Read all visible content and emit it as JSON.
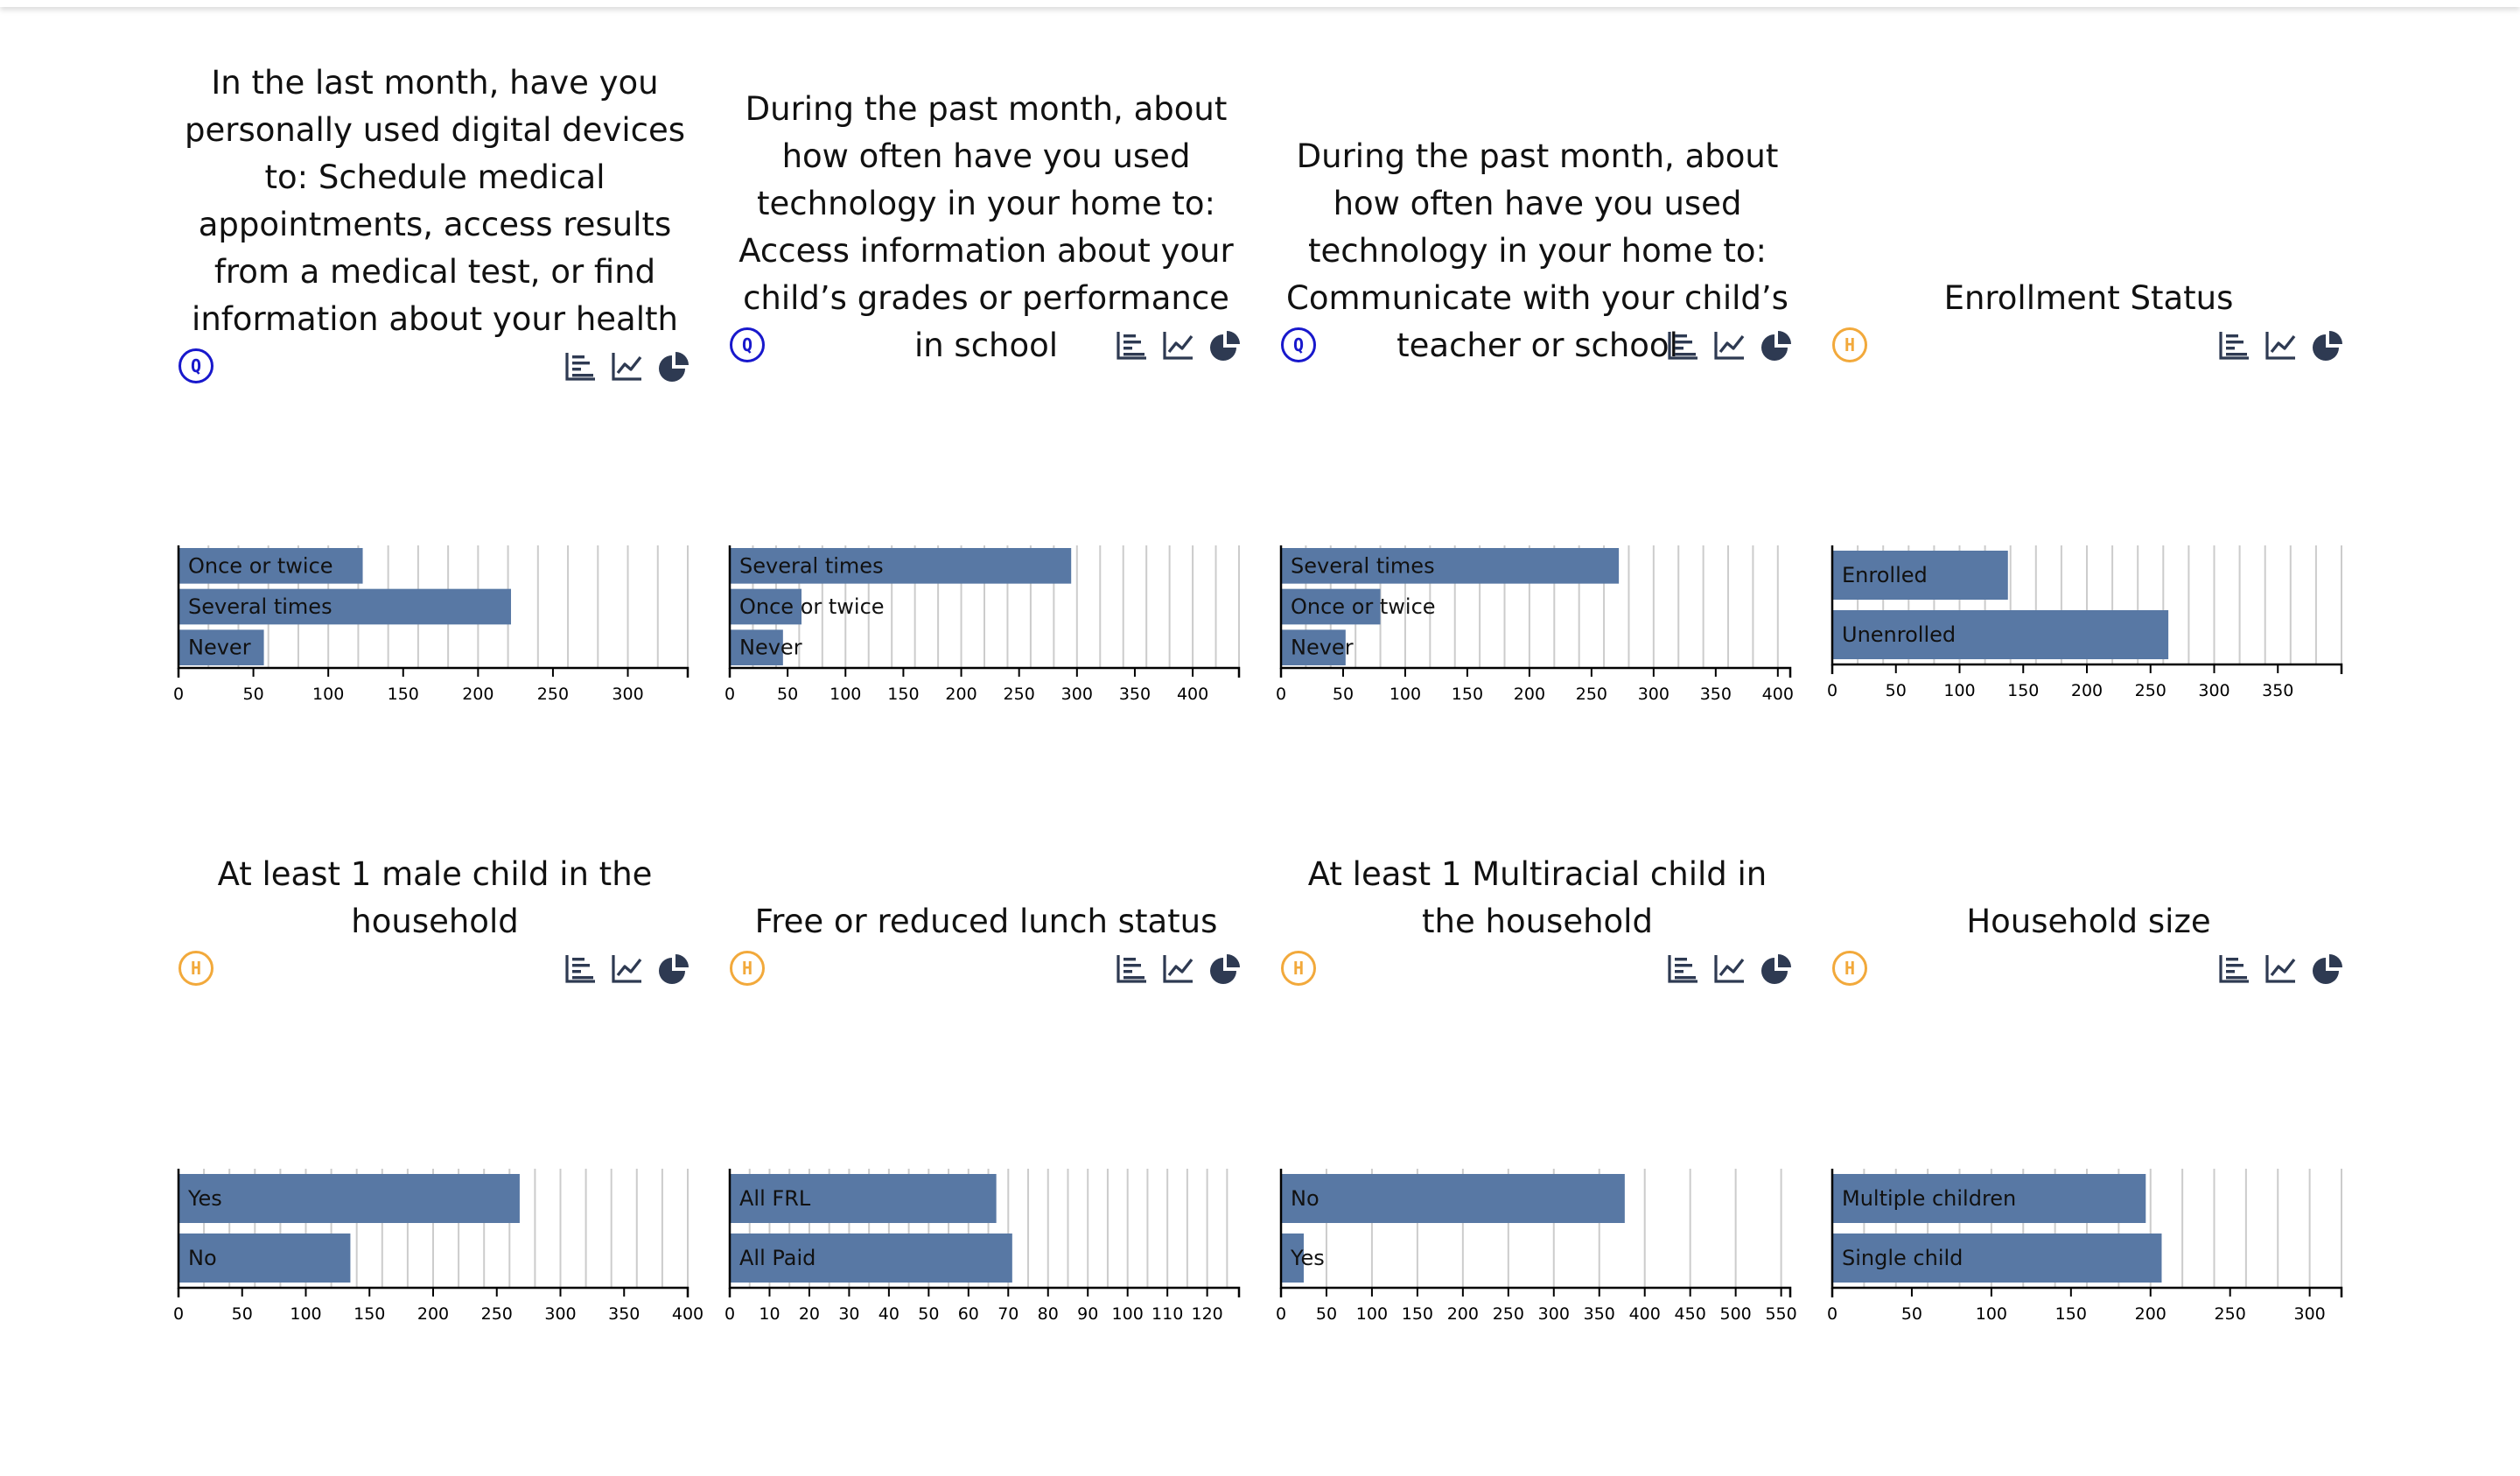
{
  "chart_data": [
    {
      "type": "bar",
      "title": "In the last month, have you personally used digital devices to: Schedule medical appointments, access results from a medical test, or find information about your health",
      "badge": "Q",
      "categories": [
        "Once or twice",
        "Several times",
        "Never"
      ],
      "values": [
        123,
        222,
        57
      ],
      "ticks": [
        0,
        50,
        100,
        150,
        200,
        250,
        300
      ],
      "xlim": [
        0,
        340
      ],
      "gridlines": [
        0,
        20,
        40,
        60,
        80,
        100,
        120,
        140,
        160,
        180,
        200,
        220,
        240,
        260,
        280,
        300,
        320,
        340
      ],
      "bar_color": "#5878a4"
    },
    {
      "type": "bar",
      "title": "During the past month, about how often have you used technology in your home to: Access information about your child’s grades or performance in school",
      "badge": "Q",
      "categories": [
        "Several times",
        "Once or twice",
        "Never"
      ],
      "values": [
        295,
        62,
        46
      ],
      "ticks": [
        0,
        50,
        100,
        150,
        200,
        250,
        300,
        350,
        400
      ],
      "xlim": [
        0,
        440
      ],
      "gridlines": [
        0,
        20,
        40,
        60,
        80,
        100,
        120,
        140,
        160,
        180,
        200,
        220,
        240,
        260,
        280,
        300,
        320,
        340,
        360,
        380,
        400,
        420,
        440
      ],
      "bar_color": "#5878a4"
    },
    {
      "type": "bar",
      "title": "During the past month, about how often have you used technology in your home to: Communicate with your child’s teacher or school",
      "badge": "Q",
      "categories": [
        "Several times",
        "Once or twice",
        "Never"
      ],
      "values": [
        272,
        80,
        52
      ],
      "ticks": [
        0,
        50,
        100,
        150,
        200,
        250,
        300,
        350,
        400
      ],
      "xlim": [
        0,
        410
      ],
      "gridlines": [
        0,
        20,
        40,
        60,
        80,
        100,
        120,
        140,
        160,
        180,
        200,
        220,
        240,
        260,
        280,
        300,
        320,
        340,
        360,
        380,
        400
      ],
      "bar_color": "#5878a4"
    },
    {
      "type": "bar",
      "title": "Enrollment Status",
      "badge": "H",
      "categories": [
        "Enrolled",
        "Unenrolled"
      ],
      "values": [
        138,
        264
      ],
      "ticks": [
        0,
        50,
        100,
        150,
        200,
        250,
        300,
        350
      ],
      "xlim": [
        0,
        400
      ],
      "gridlines": [
        0,
        20,
        40,
        60,
        80,
        100,
        120,
        140,
        160,
        180,
        200,
        220,
        240,
        260,
        280,
        300,
        320,
        340,
        360,
        380,
        400
      ],
      "bar_color": "#5878a4"
    },
    {
      "type": "bar",
      "title": "At least 1 male child in the household",
      "badge": "H",
      "categories": [
        "Yes",
        "No"
      ],
      "values": [
        268,
        135
      ],
      "ticks": [
        0,
        50,
        100,
        150,
        200,
        250,
        300,
        350,
        400
      ],
      "xlim": [
        0,
        400
      ],
      "gridlines": [
        0,
        20,
        40,
        60,
        80,
        100,
        120,
        140,
        160,
        180,
        200,
        220,
        240,
        260,
        280,
        300,
        320,
        340,
        360,
        380,
        400
      ],
      "bar_color": "#5878a4"
    },
    {
      "type": "bar",
      "title": "Free or reduced lunch status",
      "badge": "H",
      "categories": [
        "All FRL",
        "All Paid"
      ],
      "values": [
        67,
        71
      ],
      "ticks": [
        0,
        10,
        20,
        30,
        40,
        50,
        60,
        70,
        80,
        90,
        100,
        110,
        120
      ],
      "xlim": [
        0,
        128
      ],
      "gridlines": [
        0,
        5,
        10,
        15,
        20,
        25,
        30,
        35,
        40,
        45,
        50,
        55,
        60,
        65,
        70,
        75,
        80,
        85,
        90,
        95,
        100,
        105,
        110,
        115,
        120,
        125
      ],
      "bar_color": "#5878a4"
    },
    {
      "type": "bar",
      "title": "At least 1 Multiracial child in the household",
      "badge": "H",
      "categories": [
        "No",
        "Yes"
      ],
      "values": [
        378,
        25
      ],
      "ticks": [
        0,
        50,
        100,
        150,
        200,
        250,
        300,
        350,
        400,
        450,
        500,
        550
      ],
      "xlim": [
        0,
        560
      ],
      "gridlines": [
        0,
        50,
        100,
        150,
        200,
        250,
        300,
        350,
        400,
        450,
        500,
        550
      ],
      "bar_color": "#5878a4"
    },
    {
      "type": "bar",
      "title": "Household size",
      "badge": "H",
      "categories": [
        "Multiple children",
        "Single child"
      ],
      "values": [
        197,
        207
      ],
      "ticks": [
        0,
        50,
        100,
        150,
        200,
        250,
        300
      ],
      "xlim": [
        0,
        320
      ],
      "gridlines": [
        0,
        20,
        40,
        60,
        80,
        100,
        120,
        140,
        160,
        180,
        200,
        220,
        240,
        260,
        280,
        300,
        320
      ],
      "bar_color": "#5878a4"
    }
  ],
  "colors": {
    "badge_q": "#1818cc",
    "badge_h": "#f2a93b",
    "icon": "#2e3a52",
    "gridline": "#cccccc",
    "axis": "#000000"
  },
  "icons": [
    "bar-chart-icon",
    "line-chart-icon",
    "pie-chart-icon"
  ]
}
